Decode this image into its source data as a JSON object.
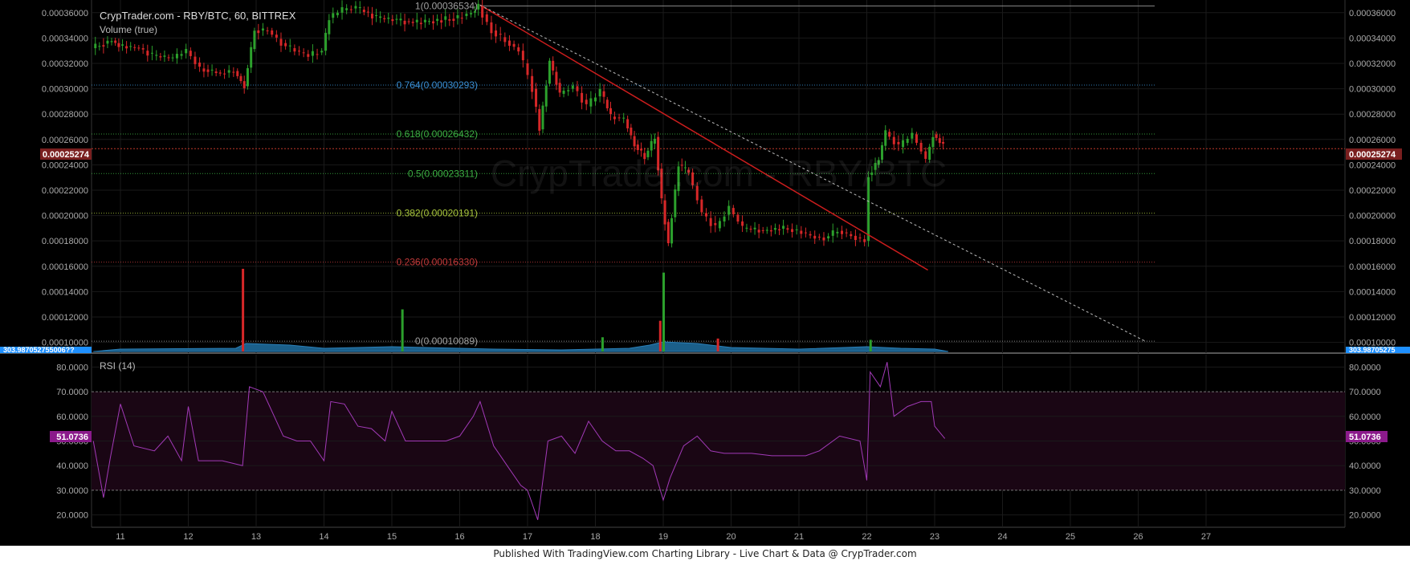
{
  "header": {
    "symbol_title": "CrypTrader.com - RBY/BTC, 60, BITTREX",
    "volume_label": "Volume (true)",
    "rsi_label": "RSI (14)",
    "watermark": "CrypTrader.com - RBY/BTC"
  },
  "footer": {
    "text": "Published With TradingView.com Charting Library - Live Chart & Data @ CrypTrader.com"
  },
  "price_badge": "0.00025274",
  "rsi_badge": "51.0736",
  "volume_badge_left": "303.987052755006??",
  "volume_badge_right": "303.98705275",
  "colors": {
    "background": "#000000",
    "up": "#2ca02c",
    "down": "#d62728",
    "rsi_line": "#a23ab8",
    "rsi_band": "#1a0614",
    "price_badge": "#7a1f1f",
    "rsi_badge": "#8b1a8b",
    "volume_badge": "#1e90ff",
    "trendline": "#cc1d1d"
  },
  "chart_data": [
    {
      "type": "candlestick",
      "title": "CrypTrader.com - RBY/BTC, 60, BITTREX",
      "x_ticks": [
        "11",
        "12",
        "13",
        "14",
        "15",
        "16",
        "17",
        "18",
        "19",
        "20",
        "21",
        "22",
        "23",
        "24",
        "25",
        "26",
        "27"
      ],
      "y_ticks": [
        "0.00010000",
        "0.00012000",
        "0.00014000",
        "0.00016000",
        "0.00018000",
        "0.00020000",
        "0.00022000",
        "0.00024000",
        "0.00026000",
        "0.00028000",
        "0.00030000",
        "0.00032000",
        "0.00034000",
        "0.00036000"
      ],
      "ylim": [
        9.15e-05,
        0.00037
      ],
      "current_price": 0.00025274,
      "fib_levels": [
        {
          "label": "1(0.00036534)",
          "value": 0.00036534,
          "color": "#a0a0a0"
        },
        {
          "label": "0.764(0.00030293)",
          "value": 0.00030293,
          "color": "#3a8fd4"
        },
        {
          "label": "0.618(0.00026432)",
          "value": 0.00026432,
          "color": "#3cb043"
        },
        {
          "label": "0.5(0.00023311)",
          "value": 0.00023311,
          "color": "#3cb043"
        },
        {
          "label": "0.382(0.00020191)",
          "value": 0.00020191,
          "color": "#a8c63c"
        },
        {
          "label": "0.236(0.00016330)",
          "value": 0.0001633,
          "color": "#c23a3a"
        },
        {
          "label": "0(0.00010089)",
          "value": 0.00010089,
          "color": "#a0a0a0"
        }
      ],
      "price_path": [
        [
          10.6,
          0.000332
        ],
        [
          10.9,
          0.000338
        ],
        [
          11.0,
          0.000334
        ],
        [
          11.3,
          0.000332
        ],
        [
          11.5,
          0.000326
        ],
        [
          11.8,
          0.000324
        ],
        [
          12.0,
          0.00033
        ],
        [
          12.2,
          0.000316
        ],
        [
          12.5,
          0.000312
        ],
        [
          12.7,
          0.000314
        ],
        [
          12.85,
          0.000302
        ],
        [
          13.0,
          0.000346
        ],
        [
          13.2,
          0.000346
        ],
        [
          13.4,
          0.000336
        ],
        [
          13.6,
          0.00033
        ],
        [
          13.8,
          0.000326
        ],
        [
          14.0,
          0.00033
        ],
        [
          14.1,
          0.000356
        ],
        [
          14.3,
          0.000362
        ],
        [
          14.5,
          0.000364
        ],
        [
          14.8,
          0.000356
        ],
        [
          15.1,
          0.000354
        ],
        [
          15.4,
          0.000352
        ],
        [
          15.7,
          0.000354
        ],
        [
          16.0,
          0.000356
        ],
        [
          16.2,
          0.00036
        ],
        [
          16.3,
          0.000365
        ],
        [
          16.5,
          0.000346
        ],
        [
          16.7,
          0.000338
        ],
        [
          16.9,
          0.00033
        ],
        [
          17.1,
          0.0003
        ],
        [
          17.2,
          0.000268
        ],
        [
          17.35,
          0.000322
        ],
        [
          17.5,
          0.000296
        ],
        [
          17.7,
          0.000302
        ],
        [
          17.9,
          0.000286
        ],
        [
          18.1,
          0.000298
        ],
        [
          18.25,
          0.000278
        ],
        [
          18.45,
          0.000276
        ],
        [
          18.6,
          0.000256
        ],
        [
          18.75,
          0.000246
        ],
        [
          18.9,
          0.000262
        ],
        [
          19.0,
          0.000212
        ],
        [
          19.1,
          0.000178
        ],
        [
          19.25,
          0.00024
        ],
        [
          19.4,
          0.000234
        ],
        [
          19.6,
          0.000202
        ],
        [
          19.8,
          0.00019
        ],
        [
          20.0,
          0.000206
        ],
        [
          20.2,
          0.00019
        ],
        [
          20.5,
          0.000188
        ],
        [
          20.8,
          0.00019
        ],
        [
          21.0,
          0.000188
        ],
        [
          21.2,
          0.000184
        ],
        [
          21.4,
          0.000182
        ],
        [
          21.6,
          0.000188
        ],
        [
          21.8,
          0.000184
        ],
        [
          22.0,
          0.00018
        ],
        [
          22.05,
          0.000232
        ],
        [
          22.2,
          0.000244
        ],
        [
          22.3,
          0.000266
        ],
        [
          22.5,
          0.000254
        ],
        [
          22.7,
          0.000264
        ],
        [
          22.9,
          0.000244
        ],
        [
          23.0,
          0.000264
        ],
        [
          23.15,
          0.000255
        ]
      ],
      "volume_spikes": [
        {
          "x": 12.8,
          "value": 0.000158,
          "dir": "down"
        },
        {
          "x": 15.15,
          "value": 0.000126,
          "dir": "up"
        },
        {
          "x": 18.1,
          "value": 0.000104,
          "dir": "up"
        },
        {
          "x": 18.95,
          "value": 0.000117,
          "dir": "down"
        },
        {
          "x": 19.0,
          "value": 0.000155,
          "dir": "up"
        },
        {
          "x": 19.8,
          "value": 0.000103,
          "dir": "down"
        },
        {
          "x": 22.05,
          "value": 0.000102,
          "dir": "up"
        }
      ],
      "trendline_solid": [
        [
          16.3,
          0.000366
        ],
        [
          22.9,
          0.000157
        ]
      ],
      "trendline_dotted": [
        [
          16.3,
          0.000366
        ],
        [
          26.1,
          0.000101
        ]
      ]
    },
    {
      "type": "line",
      "title": "RSI (14)",
      "x_ticks": [
        "11",
        "12",
        "13",
        "14",
        "15",
        "16",
        "17",
        "18",
        "19",
        "20",
        "21",
        "22",
        "23",
        "24",
        "25",
        "26",
        "27"
      ],
      "y_ticks": [
        "20.0000",
        "30.0000",
        "40.0000",
        "50.0000",
        "60.0000",
        "70.0000",
        "80.0000"
      ],
      "ylim": [
        15,
        85
      ],
      "overbought": 70,
      "oversold": 30,
      "current_value": 51.0736,
      "points": [
        [
          10.6,
          50
        ],
        [
          10.75,
          27
        ],
        [
          10.85,
          43
        ],
        [
          11.0,
          65
        ],
        [
          11.2,
          48
        ],
        [
          11.5,
          46
        ],
        [
          11.7,
          52
        ],
        [
          11.9,
          42
        ],
        [
          12.0,
          64
        ],
        [
          12.15,
          42
        ],
        [
          12.5,
          42
        ],
        [
          12.8,
          40
        ],
        [
          12.9,
          72
        ],
        [
          13.1,
          70
        ],
        [
          13.2,
          64
        ],
        [
          13.4,
          52
        ],
        [
          13.6,
          50
        ],
        [
          13.8,
          50
        ],
        [
          14.0,
          42
        ],
        [
          14.1,
          66
        ],
        [
          14.3,
          65
        ],
        [
          14.5,
          56
        ],
        [
          14.7,
          55
        ],
        [
          14.9,
          50
        ],
        [
          15.0,
          62
        ],
        [
          15.2,
          50
        ],
        [
          15.5,
          50
        ],
        [
          15.8,
          50
        ],
        [
          16.0,
          52
        ],
        [
          16.2,
          60
        ],
        [
          16.3,
          66
        ],
        [
          16.5,
          48
        ],
        [
          16.7,
          40
        ],
        [
          16.9,
          32
        ],
        [
          17.0,
          30
        ],
        [
          17.15,
          18
        ],
        [
          17.3,
          50
        ],
        [
          17.5,
          52
        ],
        [
          17.7,
          45
        ],
        [
          17.9,
          58
        ],
        [
          18.1,
          50
        ],
        [
          18.3,
          46
        ],
        [
          18.5,
          46
        ],
        [
          18.7,
          43
        ],
        [
          18.85,
          40
        ],
        [
          19.0,
          26
        ],
        [
          19.1,
          35
        ],
        [
          19.3,
          48
        ],
        [
          19.5,
          52
        ],
        [
          19.7,
          46
        ],
        [
          19.9,
          45
        ],
        [
          20.1,
          45
        ],
        [
          20.3,
          45
        ],
        [
          20.6,
          44
        ],
        [
          20.9,
          44
        ],
        [
          21.1,
          44
        ],
        [
          21.3,
          46
        ],
        [
          21.6,
          52
        ],
        [
          21.9,
          50
        ],
        [
          22.0,
          34
        ],
        [
          22.05,
          78
        ],
        [
          22.2,
          72
        ],
        [
          22.3,
          82
        ],
        [
          22.4,
          60
        ],
        [
          22.6,
          64
        ],
        [
          22.8,
          66
        ],
        [
          22.95,
          66
        ],
        [
          23.0,
          56
        ],
        [
          23.15,
          51
        ]
      ]
    }
  ]
}
